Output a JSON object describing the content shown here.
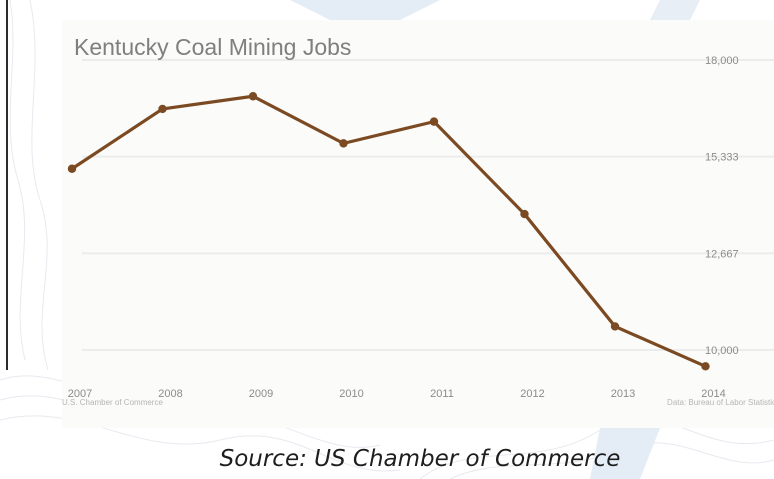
{
  "chart_data": {
    "type": "line",
    "title": "Kentucky Coal Mining Jobs",
    "x": [
      "2007",
      "2008",
      "2009",
      "2010",
      "2011",
      "2012",
      "2013",
      "2014"
    ],
    "series": [
      {
        "values": [
          15000,
          16650,
          17000,
          15700,
          16300,
          13750,
          10650,
          9550
        ]
      }
    ],
    "y_tick_labels": [
      "18,000",
      "15,333",
      "12,667",
      "10,000"
    ],
    "y_ticks": [
      18000,
      15333,
      12667,
      10000
    ],
    "ylim": [
      9500,
      18500
    ],
    "grid": true,
    "y_axis_side": "right",
    "line_color": "#7b4a22"
  },
  "footnotes": {
    "left": "U.S. Chamber of Commerce",
    "right": "Data: Bureau of Labor Statistics"
  },
  "caption": "Source: US Chamber of Commerce"
}
